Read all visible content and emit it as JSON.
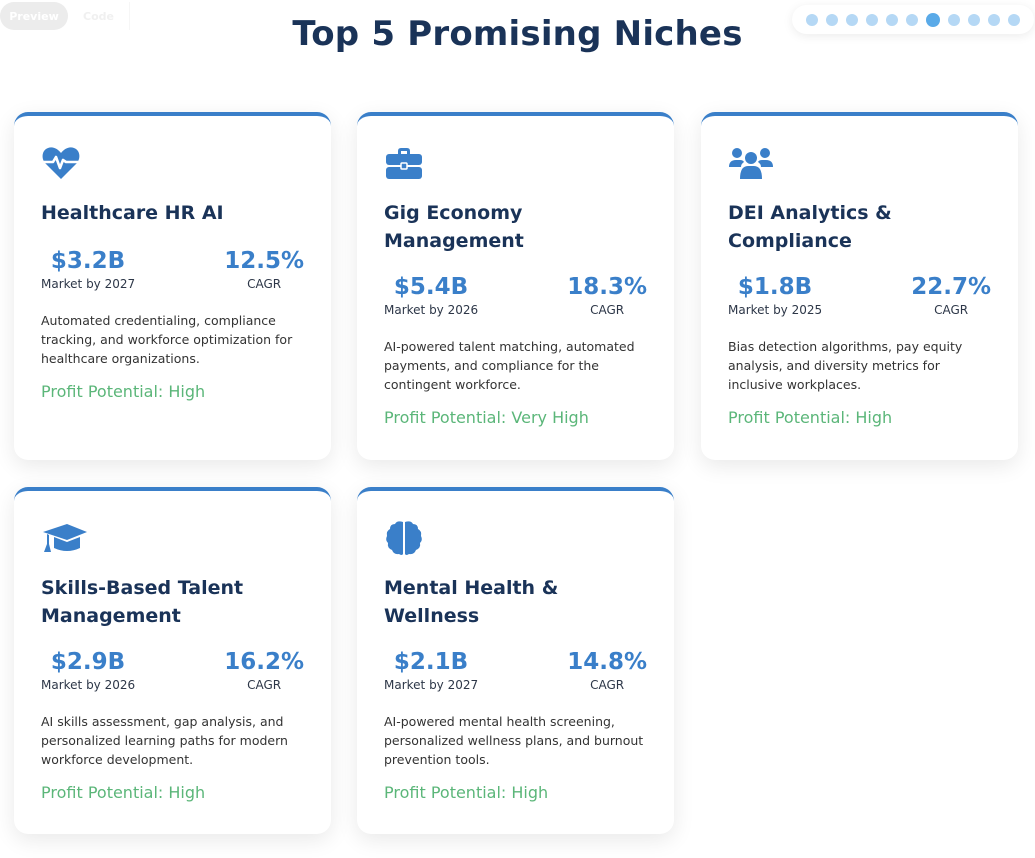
{
  "tabs": {
    "preview": "Preview",
    "code": "Code"
  },
  "slides": {
    "total": 11,
    "active_index": 6
  },
  "title": "Top 5 Promising Niches",
  "colors": {
    "accent": "#3a7fc9",
    "title": "#1a3358",
    "profit": "#5bb679"
  },
  "cards": [
    {
      "icon": "heartbeat-icon",
      "title": "Healthcare HR AI",
      "market_value": "$3.2B",
      "market_label": "Market by 2027",
      "cagr_value": "12.5%",
      "cagr_label": "CAGR",
      "description": "Automated credentialing, compliance tracking, and workforce optimization for healthcare organizations.",
      "profit": "Profit Potential: High"
    },
    {
      "icon": "briefcase-icon",
      "title": "Gig Economy Management",
      "market_value": "$5.4B",
      "market_label": "Market by 2026",
      "cagr_value": "18.3%",
      "cagr_label": "CAGR",
      "description": "AI-powered talent matching, automated payments, and compliance for the contingent workforce.",
      "profit": "Profit Potential: Very High"
    },
    {
      "icon": "users-icon",
      "title": "DEI Analytics & Compliance",
      "market_value": "$1.8B",
      "market_label": "Market by 2025",
      "cagr_value": "22.7%",
      "cagr_label": "CAGR",
      "description": "Bias detection algorithms, pay equity analysis, and diversity metrics for inclusive workplaces.",
      "profit": "Profit Potential: High"
    },
    {
      "icon": "graduation-cap-icon",
      "title": "Skills-Based Talent Management",
      "market_value": "$2.9B",
      "market_label": "Market by 2026",
      "cagr_value": "16.2%",
      "cagr_label": "CAGR",
      "description": "AI skills assessment, gap analysis, and personalized learning paths for modern workforce development.",
      "profit": "Profit Potential: High"
    },
    {
      "icon": "brain-icon",
      "title": "Mental Health & Wellness",
      "market_value": "$2.1B",
      "market_label": "Market by 2027",
      "cagr_value": "14.8%",
      "cagr_label": "CAGR",
      "description": "AI-powered mental health screening, personalized wellness plans, and burnout prevention tools.",
      "profit": "Profit Potential: High"
    }
  ]
}
